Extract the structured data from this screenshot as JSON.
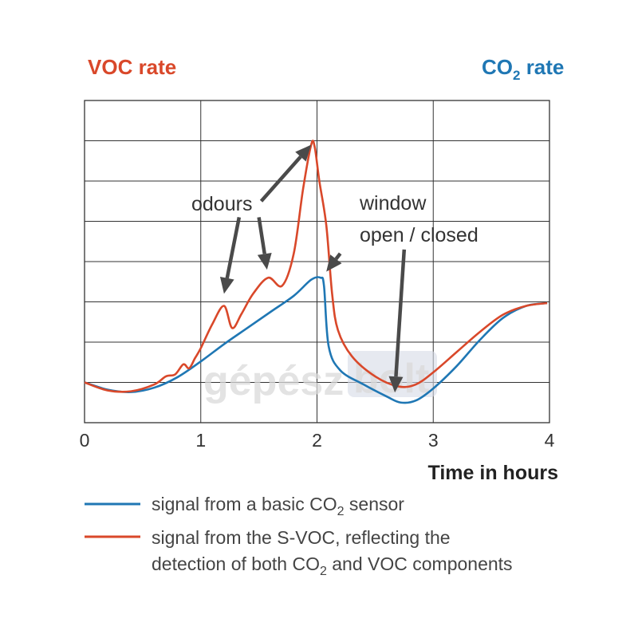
{
  "chart_data": {
    "type": "line",
    "title_left": "VOC rate",
    "title_right_main": "CO",
    "title_right_sub": "2",
    "title_right_rest": " rate",
    "xlabel": "Time in hours",
    "xlim": [
      0,
      4
    ],
    "ylim": [
      0,
      8
    ],
    "xticks": [
      "0",
      "1",
      "2",
      "3",
      "4"
    ],
    "grid": true,
    "colors": {
      "co2": "#1f77b4",
      "svoc": "#d9482a",
      "arrow": "#4a4a4a",
      "grid": "#333333"
    },
    "series": [
      {
        "key": "co2",
        "x": [
          0,
          0.2,
          0.4,
          0.6,
          0.8,
          1.0,
          1.2,
          1.4,
          1.6,
          1.8,
          1.95,
          2.03,
          2.06,
          2.1,
          2.2,
          2.4,
          2.6,
          2.72,
          2.85,
          3.0,
          3.2,
          3.4,
          3.6,
          3.8,
          3.98
        ],
        "y": [
          1.0,
          0.82,
          0.76,
          0.87,
          1.13,
          1.52,
          1.95,
          2.35,
          2.75,
          3.15,
          3.55,
          3.6,
          3.4,
          1.9,
          1.3,
          0.95,
          0.65,
          0.5,
          0.55,
          0.85,
          1.4,
          2.05,
          2.6,
          2.9,
          2.97
        ]
      },
      {
        "key": "svoc",
        "x": [
          0,
          0.2,
          0.4,
          0.6,
          0.7,
          0.78,
          0.85,
          0.9,
          0.95,
          1.0,
          1.1,
          1.2,
          1.27,
          1.35,
          1.45,
          1.58,
          1.7,
          1.8,
          1.88,
          1.95,
          1.98,
          2.02,
          2.08,
          2.13,
          2.18,
          2.3,
          2.5,
          2.7,
          2.85,
          3.0,
          3.2,
          3.4,
          3.6,
          3.8,
          3.98
        ],
        "y": [
          1.0,
          0.8,
          0.78,
          0.95,
          1.15,
          1.2,
          1.45,
          1.35,
          1.6,
          1.85,
          2.45,
          2.9,
          2.35,
          2.7,
          3.2,
          3.6,
          3.4,
          4.2,
          5.8,
          6.9,
          6.85,
          6.0,
          4.9,
          3.2,
          2.3,
          1.65,
          1.15,
          0.9,
          0.95,
          1.25,
          1.75,
          2.25,
          2.68,
          2.9,
          2.97
        ]
      }
    ],
    "annotations": {
      "odours": "odours",
      "window_line1": "window",
      "window_line2": "open / closed"
    },
    "legend": {
      "co2_a": "signal from a basic CO",
      "co2_sub": "2",
      "co2_b": " sensor",
      "svoc_line1": "signal from the S-VOC, reflecting the",
      "svoc_line2_a": "detection of both CO",
      "svoc_line2_sub": "2",
      "svoc_line2_b": " and VOC components"
    }
  },
  "watermark": {
    "part1": "gépész",
    "part2": "bolt"
  }
}
